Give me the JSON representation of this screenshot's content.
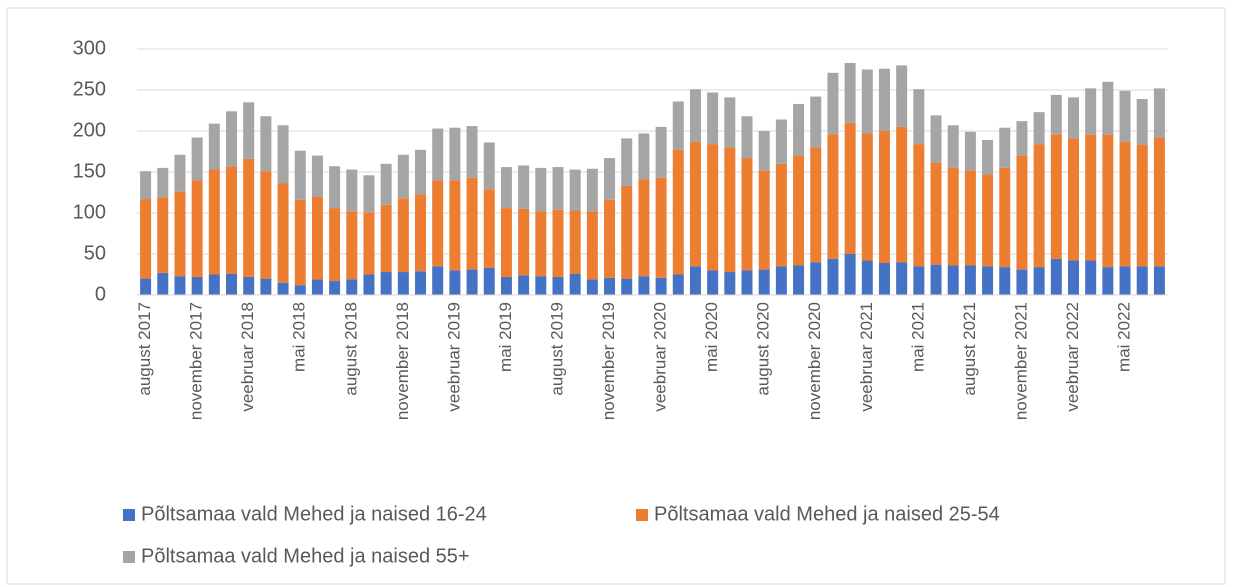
{
  "chart_data": {
    "type": "stacked_bar",
    "categories": [
      "august 2017",
      null,
      null,
      "november 2017",
      null,
      null,
      "veebruar 2018",
      null,
      null,
      "mai 2018",
      null,
      null,
      "august 2018",
      null,
      null,
      "november 2018",
      null,
      null,
      "veebruar 2019",
      null,
      null,
      "mai 2019",
      null,
      null,
      "august 2019",
      null,
      null,
      "november 2019",
      null,
      null,
      "veebruar 2020",
      null,
      null,
      "mai 2020",
      null,
      null,
      "august 2020",
      null,
      null,
      "november 2020",
      null,
      null,
      "veebruar 2021",
      null,
      null,
      "mai 2021",
      null,
      null,
      "august 2021",
      null,
      null,
      "november 2021",
      null,
      null,
      "veebruar 2022",
      null,
      null,
      "mai 2022",
      null,
      null
    ],
    "series": [
      {
        "name": "Põltsamaa vald Mehed ja naised 16-24",
        "color": "#4472c4",
        "values": [
          20,
          27,
          23,
          22,
          25,
          26,
          22,
          20,
          15,
          12,
          19,
          17,
          19,
          25,
          28,
          28,
          29,
          35,
          30,
          31,
          33,
          22,
          24,
          23,
          22,
          26,
          19,
          21,
          20,
          23,
          21,
          25,
          35,
          30,
          28,
          30,
          31,
          35,
          36,
          40,
          44,
          50,
          42,
          39,
          40,
          35,
          37,
          36,
          36,
          35,
          34,
          31,
          34,
          44,
          42,
          42,
          34,
          35,
          35,
          35
        ]
      },
      {
        "name": "Põltsamaa vald Mehed ja naised 25-54",
        "color": "#ed7d31",
        "values": [
          97,
          92,
          103,
          118,
          128,
          131,
          144,
          131,
          121,
          104,
          101,
          89,
          83,
          76,
          82,
          90,
          94,
          105,
          110,
          112,
          96,
          84,
          81,
          79,
          82,
          77,
          83,
          95,
          113,
          118,
          122,
          152,
          152,
          154,
          152,
          137,
          121,
          125,
          134,
          140,
          152,
          160,
          155,
          161,
          165,
          149,
          124,
          119,
          116,
          112,
          121,
          139,
          150,
          152,
          149,
          154,
          162,
          152,
          148,
          157
        ]
      },
      {
        "name": "Põltsamaa vald Mehed ja naised 55+",
        "color": "#a5a5a5",
        "values": [
          34,
          36,
          45,
          52,
          56,
          67,
          69,
          67,
          71,
          60,
          50,
          51,
          51,
          45,
          50,
          53,
          54,
          63,
          64,
          63,
          57,
          50,
          53,
          53,
          52,
          50,
          52,
          51,
          58,
          56,
          62,
          59,
          64,
          63,
          61,
          51,
          48,
          54,
          63,
          62,
          75,
          73,
          78,
          76,
          75,
          67,
          58,
          52,
          47,
          42,
          49,
          42,
          39,
          48,
          50,
          56,
          64,
          62,
          56,
          60
        ]
      }
    ],
    "ylim": [
      0,
      300
    ],
    "yticks": [
      0,
      50,
      100,
      150,
      200,
      250,
      300
    ],
    "grid": true,
    "legend": "bottom"
  }
}
